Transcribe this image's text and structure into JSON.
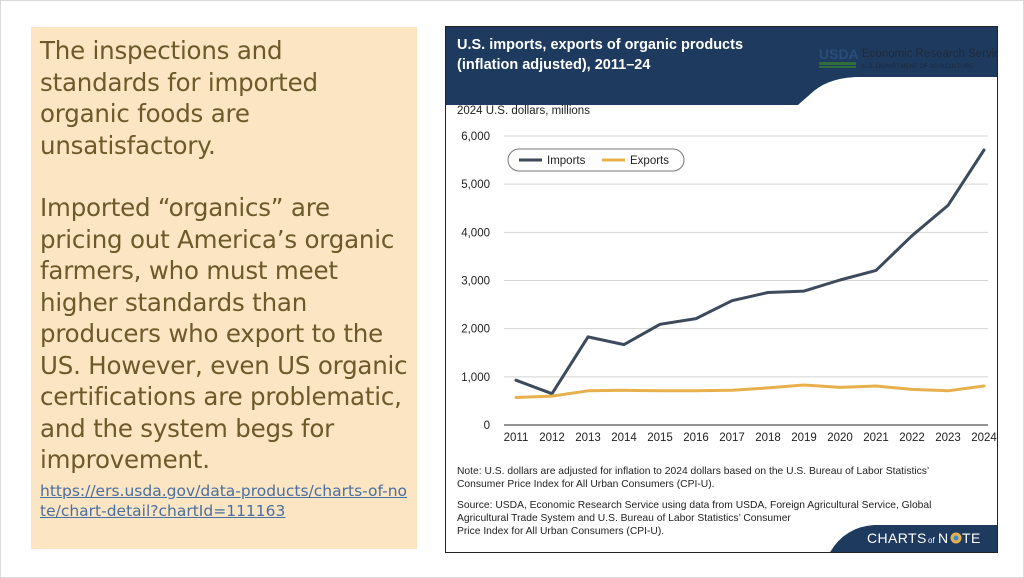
{
  "left_panel": {
    "paragraph_1": "The inspections and standards for imported organic foods are unsatisfactory.",
    "paragraph_2": "Imported “organics” are pricing out America’s organic farmers, who must meet higher standards than producers who export to the US. However, even US organic certifications are problematic, and the system begs for improvement.",
    "link_text": "https://ers.usda.gov/data-products/charts-of-note/chart-detail?chartId=111163",
    "colors": {
      "background": "#fbe5c2",
      "text": "#6b5a2a",
      "link": "#4a6fa0"
    }
  },
  "chart_card": {
    "header_bg": "#1e3a5f",
    "usda_logo_text": "USDA",
    "agency_name": "Economic Research Service",
    "department": "U.S. DEPARTMENT OF AGRICULTURE",
    "note_lines": [
      "Note: U.S. dollars are adjusted for inflation to 2024 dollars based on the U.S. Bureau of Labor Statistics’",
      "Consumer Price Index for All Urban Consumers (CPI-U)."
    ],
    "source_lines": [
      "Source: USDA, Economic Research Service using data from USDA, Foreign Agricultural Service, Global",
      "Agricultural Trade System and U.S. Bureau of Labor Statistics’ Consumer",
      "Price Index for All Urban Consumers (CPI-U)."
    ],
    "footer_logo": {
      "part1": "CHARTS",
      "part2": "of",
      "part3": "N",
      "part4": "TE"
    }
  },
  "chart_data": {
    "type": "line",
    "title_lines": [
      "U.S. imports, exports of organic products",
      "(inflation adjusted), 2011–24"
    ],
    "ylabel": "2024 U.S. dollars, millions",
    "xlabel": "",
    "ylim": [
      0,
      6000
    ],
    "yticks": [
      0,
      1000,
      2000,
      3000,
      4000,
      5000,
      6000
    ],
    "ytick_labels": [
      "0",
      "1,000",
      "2,000",
      "3,000",
      "4,000",
      "5,000",
      "6,000"
    ],
    "x": [
      "2011",
      "2012",
      "2013",
      "2014",
      "2015",
      "2016",
      "2017",
      "2018",
      "2019",
      "2020",
      "2021",
      "2022",
      "2023",
      "2024"
    ],
    "series": [
      {
        "name": "Imports",
        "color": "#3d4a5c",
        "values": [
          930,
          650,
          1830,
          1670,
          2090,
          2210,
          2580,
          2750,
          2780,
          3010,
          3210,
          3930,
          4560,
          5710
        ]
      },
      {
        "name": "Exports",
        "color": "#e7b04d",
        "values": [
          570,
          600,
          710,
          720,
          710,
          710,
          720,
          770,
          830,
          780,
          810,
          740,
          710,
          810
        ]
      }
    ],
    "legend_position": "top-left",
    "grid": true
  }
}
